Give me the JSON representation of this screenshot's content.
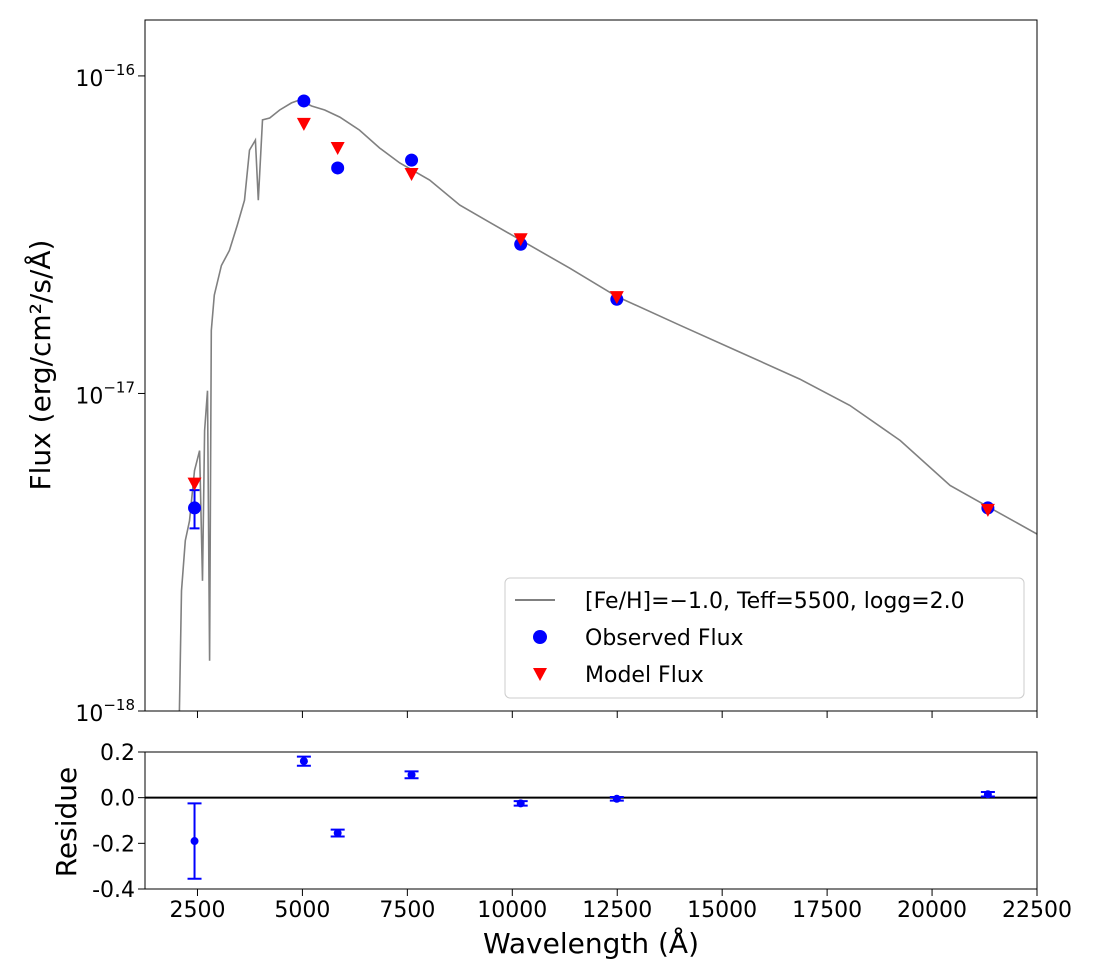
{
  "chart_data": [
    {
      "type": "sed",
      "ylabel": "Flux (erg/cm²/s/Å)",
      "xlim": [
        1250,
        22500
      ],
      "ylim": [
        1e-18,
        1.5e-16
      ],
      "yscale": "log",
      "yticks": [
        {
          "value": 1e-16,
          "label": "10−16"
        },
        {
          "value": 1e-17,
          "label": "10−17"
        },
        {
          "value": 1e-18,
          "label": "10−18"
        }
      ],
      "legend": "lower right",
      "series": [
        {
          "name": "[Fe/H]=−1.0, Teff=5500, logg=2.0",
          "color": "#808080",
          "marker": "line",
          "x": [
            2070,
            2120,
            2210,
            2310,
            2430,
            2550,
            2620,
            2670,
            2740,
            2790,
            2830,
            2900,
            3070,
            3260,
            3450,
            3620,
            3740,
            3880,
            3950,
            4050,
            4220,
            4460,
            4740,
            4930,
            5220,
            5530,
            5890,
            6360,
            6840,
            7320,
            8030,
            8750,
            9460,
            10200,
            11370,
            12490,
            13990,
            15420,
            16850,
            18040,
            19240,
            20430,
            21330,
            22500
          ],
          "values": [
            1e-18,
            2.39e-18,
            3.44e-18,
            3.97e-18,
            5.71e-18,
            6.61e-18,
            2.57e-18,
            7.64e-18,
            1.02e-17,
            1.44e-18,
            1.58e-17,
            2.04e-17,
            2.53e-17,
            2.82e-17,
            3.39e-17,
            4.06e-17,
            5.84e-17,
            6.28e-17,
            4.06e-17,
            7.27e-17,
            7.37e-17,
            7.81e-17,
            8.22e-17,
            8.4e-17,
            8.04e-17,
            7.81e-17,
            7.42e-17,
            6.75e-17,
            5.93e-17,
            5.32e-17,
            4.7e-17,
            3.92e-17,
            3.46e-17,
            3.04e-17,
            2.48e-17,
            2.02e-17,
            1.64e-17,
            1.35e-17,
            1.11e-17,
            9.17e-18,
            7.11e-18,
            5.13e-18,
            4.4e-18,
            3.61e-18
          ]
        },
        {
          "name": "Observed Flux",
          "color": "#0000ff",
          "marker": "circle",
          "x": [
            2430,
            5035,
            5840,
            7600,
            10200,
            12490,
            21330
          ],
          "values": [
            4.36e-18,
            8.34e-17,
            5.13e-17,
            5.43e-17,
            2.95e-17,
            1.98e-17,
            4.36e-18
          ],
          "errors": [
            6e-19,
            1e-18,
            5e-19,
            5e-19,
            3e-19,
            2e-19,
            5e-20
          ]
        },
        {
          "name": "Model Flux",
          "color": "#ff0000",
          "marker": "triangle-down",
          "x": [
            2430,
            5035,
            5840,
            7600,
            10200,
            12490,
            21330
          ],
          "values": [
            5.2e-18,
            7.06e-17,
            5.93e-17,
            4.91e-17,
            3.06e-17,
            2.01e-17,
            4.3e-18
          ]
        }
      ]
    },
    {
      "type": "errorbar",
      "xlabel": "Wavelength (Å)",
      "ylabel": "Residue",
      "xlim": [
        1250,
        22500
      ],
      "ylim": [
        -0.4,
        0.2
      ],
      "xticks": [
        2500,
        5000,
        7500,
        10000,
        12500,
        15000,
        17500,
        20000,
        22500
      ],
      "yticks": [
        0.2,
        {
          "value": 0,
          "label": "0.0"
        },
        -0.2,
        -0.4
      ],
      "reference_line": 0,
      "color": "#0000ff",
      "x": [
        2430,
        5035,
        5840,
        7600,
        10200,
        12490,
        21330
      ],
      "values": [
        -0.19,
        0.16,
        -0.155,
        0.1,
        -0.025,
        -0.005,
        0.015
      ],
      "errors": [
        0.165,
        0.02,
        0.015,
        0.015,
        0.01,
        0.008,
        0.01
      ]
    }
  ]
}
